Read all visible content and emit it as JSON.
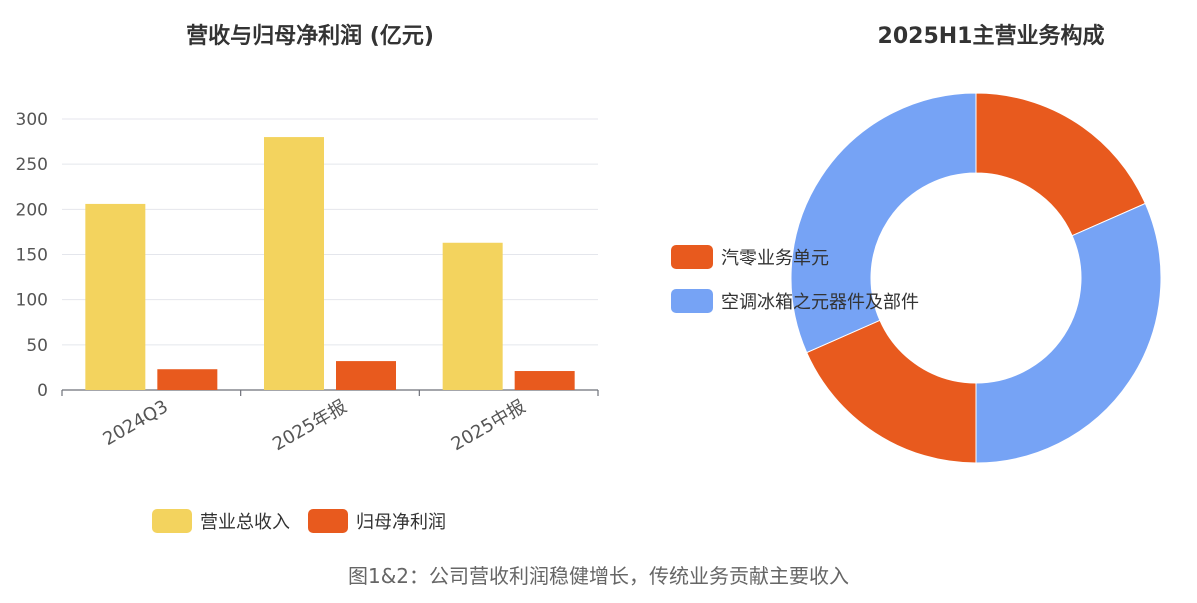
{
  "caption": "图1&2：公司营收利润稳健增长，传统业务贡献主要收入",
  "chart_data": [
    {
      "type": "bar",
      "title": "营收与归母净利润 (亿元)",
      "categories": [
        "2024Q3",
        "2025年报",
        "2025中报"
      ],
      "series": [
        {
          "name": "营业总收入",
          "values": [
            206,
            280,
            163
          ],
          "color": "#F3D35E"
        },
        {
          "name": "归母净利润",
          "values": [
            23,
            32,
            21
          ],
          "color": "#E85A1E"
        }
      ],
      "yticks": [
        "0",
        "50",
        "100",
        "150",
        "200",
        "250",
        "300"
      ],
      "ylim": [
        0,
        300
      ],
      "grid": true,
      "legend": "bottom"
    },
    {
      "type": "pie",
      "title": "2025H1主营业务构成",
      "donut": true,
      "slices": [
        {
          "name": "汽零业务单元",
          "value": 18.4,
          "color": "#E85A1E"
        },
        {
          "name": "空调冰箱之元器件及部件",
          "value": 31.6,
          "color": "#76A3F5"
        },
        {
          "name": "汽零业务单元",
          "value": 18.4,
          "color": "#E85A1E"
        },
        {
          "name": "空调冰箱之元器件及部件",
          "value": 31.6,
          "color": "#76A3F5"
        }
      ],
      "legend_items": [
        {
          "name": "汽零业务单元",
          "color": "#E85A1E"
        },
        {
          "name": "空调冰箱之元器件及部件",
          "color": "#76A3F5"
        }
      ],
      "legend": "left"
    }
  ]
}
